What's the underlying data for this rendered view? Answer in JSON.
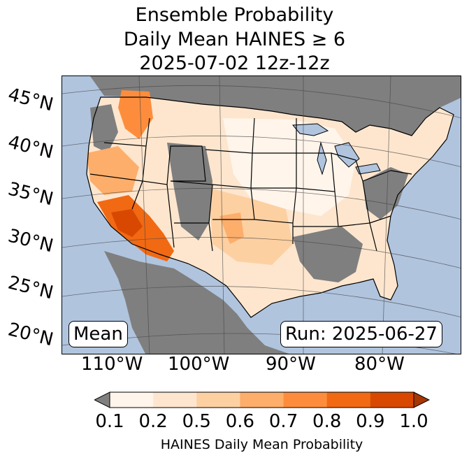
{
  "title_lines": [
    "Ensemble Probability",
    "Daily Mean HAINES ≥ 6",
    "2025-07-02 12z-12z"
  ],
  "lat_labels": [
    "45°N",
    "40°N",
    "35°N",
    "30°N",
    "25°N",
    "20°N"
  ],
  "lon_labels": [
    "110°W",
    "100°W",
    "90°W",
    "80°W"
  ],
  "stat_label": "Mean",
  "run_label": "Run: 2025-06-27",
  "colorbar": {
    "ticks": [
      "0.1",
      "0.2",
      "0.5",
      "0.6",
      "0.7",
      "0.8",
      "0.9",
      "1.0"
    ],
    "title": "HAINES Daily Mean Probability",
    "colors": [
      "#fff5eb",
      "#fee6ce",
      "#fdd0a2",
      "#fdae6b",
      "#fd8d3c",
      "#f16913",
      "#d94801",
      "#a63603"
    ],
    "under_color": "#808080"
  },
  "map_colors": {
    "ocean": "#b0c4de",
    "no_data": "#7f7f7f",
    "lakes": "#b0c4de"
  }
}
